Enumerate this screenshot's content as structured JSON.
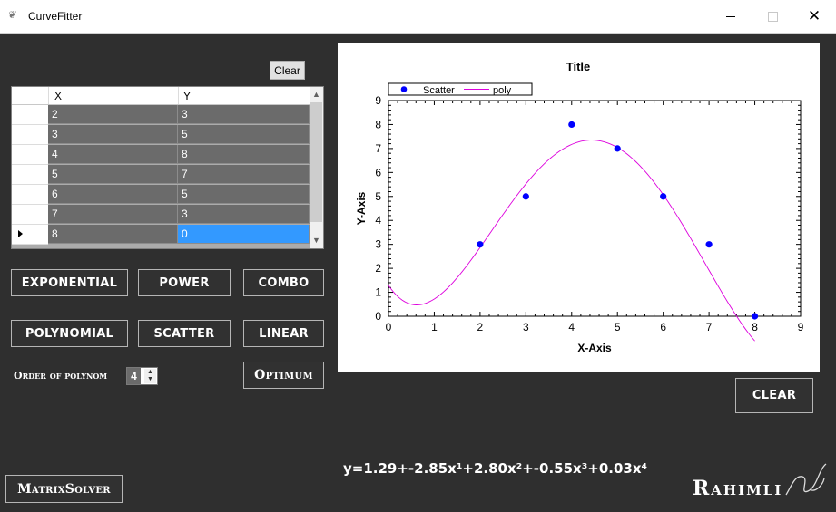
{
  "window": {
    "title": "CurveFitter",
    "close_glyph": "✕"
  },
  "grid": {
    "clear_label": "Clear",
    "columns": [
      "X",
      "Y"
    ],
    "rows": [
      [
        "2",
        "3"
      ],
      [
        "3",
        "5"
      ],
      [
        "4",
        "8"
      ],
      [
        "5",
        "7"
      ],
      [
        "6",
        "5"
      ],
      [
        "7",
        "3"
      ],
      [
        "8",
        "0"
      ]
    ],
    "selected_row": 6
  },
  "buttons": {
    "exponential": "EXPONENTIAL",
    "power": "POWER",
    "combo": "COMBO",
    "polynomial": "POLYNOMIAL",
    "scatter": "SCATTER",
    "linear": "LINEAR",
    "optimum": "Optimum",
    "clear": "CLEAR",
    "matrix_solver": "MatrixSolver"
  },
  "order": {
    "label": "Order of polynom",
    "value": "4"
  },
  "equation": "y=1.29+-2.85x¹+2.80x²+-0.55x³+0.03x⁴",
  "signature": "Rahimli",
  "chart_data": {
    "type": "scatter",
    "title": "Title",
    "xlabel": "X-Axis",
    "ylabel": "Y-Axis",
    "xlim": [
      0,
      9
    ],
    "ylim": [
      0,
      9
    ],
    "xticks": [
      "0",
      "1",
      "2",
      "3",
      "4",
      "5",
      "6",
      "7",
      "8",
      "9"
    ],
    "yticks": [
      "0",
      "1",
      "2",
      "3",
      "4",
      "5",
      "6",
      "7",
      "8",
      "9"
    ],
    "legend_position": "top-left",
    "series": [
      {
        "name": "Scatter",
        "kind": "points",
        "color": "#0000ff",
        "x": [
          2,
          3,
          4,
          5,
          6,
          7,
          8
        ],
        "y": [
          3,
          5,
          8,
          7,
          5,
          3,
          0
        ]
      },
      {
        "name": "poly",
        "kind": "line",
        "color": "#dd00dd",
        "coefficients": [
          1.29,
          -2.85,
          2.8,
          -0.55,
          0.03
        ],
        "x_range": [
          0,
          8
        ]
      }
    ]
  }
}
